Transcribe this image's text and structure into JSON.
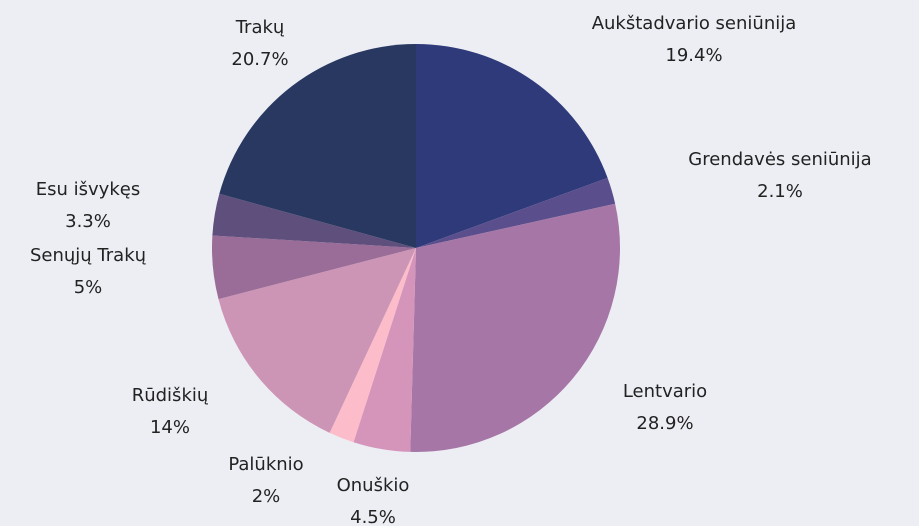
{
  "chart_data": {
    "type": "pie",
    "categories": [
      "Aukštadvario seniūnija",
      "Grendavės seniūnija",
      "Lentvario",
      "Onuškio",
      "Palūknio",
      "Rūdiškių",
      "Senųjų Trakų",
      "Esu išvykęs",
      "Trakų"
    ],
    "values": [
      19.4,
      2.1,
      28.9,
      4.5,
      2,
      14,
      5,
      3.3,
      20.7
    ],
    "value_labels": [
      "19.4%",
      "2.1%",
      "28.9%",
      "4.5%",
      "2%",
      "14%",
      "5%",
      "3.3%",
      "20.7%"
    ],
    "colors": [
      "#2e3a7a",
      "#5a4e8c",
      "#a676a6",
      "#d595bb",
      "#fdbcc9",
      "#cd95b5",
      "#9a6c98",
      "#5e4f7d",
      "#283860"
    ]
  }
}
